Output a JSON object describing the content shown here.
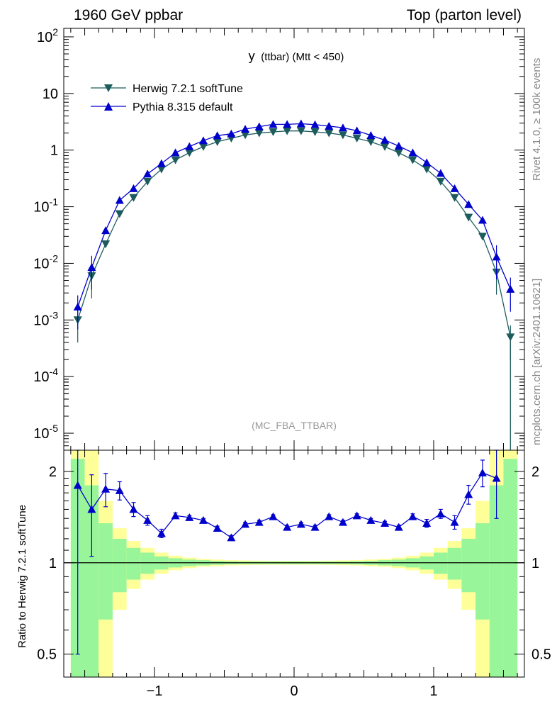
{
  "header": {
    "left": "1960 GeV ppbar",
    "right": "Top (parton level)"
  },
  "side": {
    "rivet": "Rivet 4.1.0, ≥ 100k events",
    "mcplots": "mcplots.cern.ch [arXiv:2401.10621]"
  },
  "analysis_tag": "(MC_FBA_TTBAR)",
  "colors": {
    "herwig": "#1d5c5c",
    "pythia": "#0000cc",
    "green_band": "#99f599",
    "yellow_band": "#ffff99"
  },
  "chart_data": [
    {
      "type": "line",
      "title_main": "y",
      "title_sub": "(ttbar) (Mtt < 450)",
      "xlim": [
        -1.65,
        1.65
      ],
      "ylim_log10": [
        -5.3,
        2.15
      ],
      "yscale": "log",
      "ytick_labels": [
        "10^2",
        "10",
        "1",
        "10^-1",
        "10^-2",
        "10^-3",
        "10^-4",
        "10^-5"
      ],
      "legend": [
        "Herwig 7.2.1 softTune",
        "Pythia 8.315 default"
      ],
      "x": [
        -1.55,
        -1.45,
        -1.35,
        -1.25,
        -1.15,
        -1.05,
        -0.95,
        -0.85,
        -0.75,
        -0.65,
        -0.55,
        -0.45,
        -0.35,
        -0.25,
        -0.15,
        -0.05,
        0.05,
        0.15,
        0.25,
        0.35,
        0.45,
        0.55,
        0.65,
        0.75,
        0.85,
        0.95,
        1.05,
        1.15,
        1.25,
        1.35,
        1.45,
        1.55
      ],
      "series": [
        {
          "name": "Herwig 7.2.1 softTune",
          "values": [
            0.001,
            0.006,
            0.022,
            0.075,
            0.145,
            0.28,
            0.46,
            0.67,
            0.9,
            1.15,
            1.4,
            1.62,
            1.85,
            2.0,
            2.1,
            2.18,
            2.18,
            2.1,
            2.0,
            1.85,
            1.62,
            1.4,
            1.15,
            0.9,
            0.67,
            0.46,
            0.28,
            0.145,
            0.065,
            0.03,
            0.007,
            0.0005
          ]
        },
        {
          "name": "Pythia 8.315 default",
          "values": [
            0.0017,
            0.0085,
            0.038,
            0.13,
            0.21,
            0.38,
            0.58,
            0.9,
            1.16,
            1.47,
            1.8,
            1.94,
            2.35,
            2.6,
            2.85,
            2.85,
            2.92,
            2.82,
            2.65,
            2.48,
            2.2,
            1.82,
            1.5,
            1.18,
            0.9,
            0.6,
            0.39,
            0.21,
            0.11,
            0.058,
            0.013,
            0.0035
          ]
        }
      ]
    },
    {
      "type": "line",
      "ylabel": "Ratio to Herwig 7.2.1 softTune",
      "xlim": [
        -1.65,
        1.65
      ],
      "ylim_log": [
        0.42,
        2.35
      ],
      "ytick_labels": [
        "2",
        "1",
        "0.5"
      ],
      "xtick_labels": [
        "−1",
        "0",
        "1"
      ],
      "x": [
        -1.55,
        -1.45,
        -1.35,
        -1.25,
        -1.15,
        -1.05,
        -0.95,
        -0.85,
        -0.75,
        -0.65,
        -0.55,
        -0.45,
        -0.35,
        -0.25,
        -0.15,
        -0.05,
        0.05,
        0.15,
        0.25,
        0.35,
        0.45,
        0.55,
        0.65,
        0.75,
        0.85,
        0.95,
        1.05,
        1.15,
        1.25,
        1.35,
        1.45,
        1.55
      ],
      "ratio": [
        1.8,
        1.5,
        1.75,
        1.73,
        1.5,
        1.38,
        1.25,
        1.43,
        1.41,
        1.38,
        1.3,
        1.21,
        1.34,
        1.36,
        1.42,
        1.31,
        1.34,
        1.31,
        1.42,
        1.36,
        1.43,
        1.38,
        1.35,
        1.31,
        1.42,
        1.35,
        1.45,
        1.36,
        1.68,
        1.98,
        1.9,
        null
      ],
      "ratio_err": [
        1.3,
        0.45,
        0.22,
        0.12,
        0.08,
        0.05,
        0.04,
        0.03,
        0.02,
        0.02,
        0.02,
        0.02,
        0.02,
        0.02,
        0.02,
        0.02,
        0.02,
        0.02,
        0.02,
        0.02,
        0.02,
        0.02,
        0.02,
        0.02,
        0.03,
        0.04,
        0.05,
        0.07,
        0.12,
        0.2,
        0.5,
        null
      ],
      "green_half": [
        1.2,
        0.8,
        0.35,
        0.2,
        0.12,
        0.08,
        0.05,
        0.035,
        0.025,
        0.02,
        0.015,
        0.012,
        0.01,
        0.01,
        0.01,
        0.01,
        0.01,
        0.01,
        0.01,
        0.01,
        0.012,
        0.015,
        0.02,
        0.025,
        0.035,
        0.05,
        0.08,
        0.12,
        0.2,
        0.35,
        0.8,
        1.2
      ],
      "yellow_half": [
        2.0,
        1.45,
        0.6,
        0.3,
        0.18,
        0.12,
        0.08,
        0.055,
        0.04,
        0.03,
        0.025,
        0.02,
        0.018,
        0.016,
        0.015,
        0.015,
        0.015,
        0.015,
        0.016,
        0.018,
        0.02,
        0.025,
        0.03,
        0.04,
        0.055,
        0.08,
        0.12,
        0.18,
        0.3,
        0.6,
        1.45,
        2.0
      ]
    }
  ]
}
